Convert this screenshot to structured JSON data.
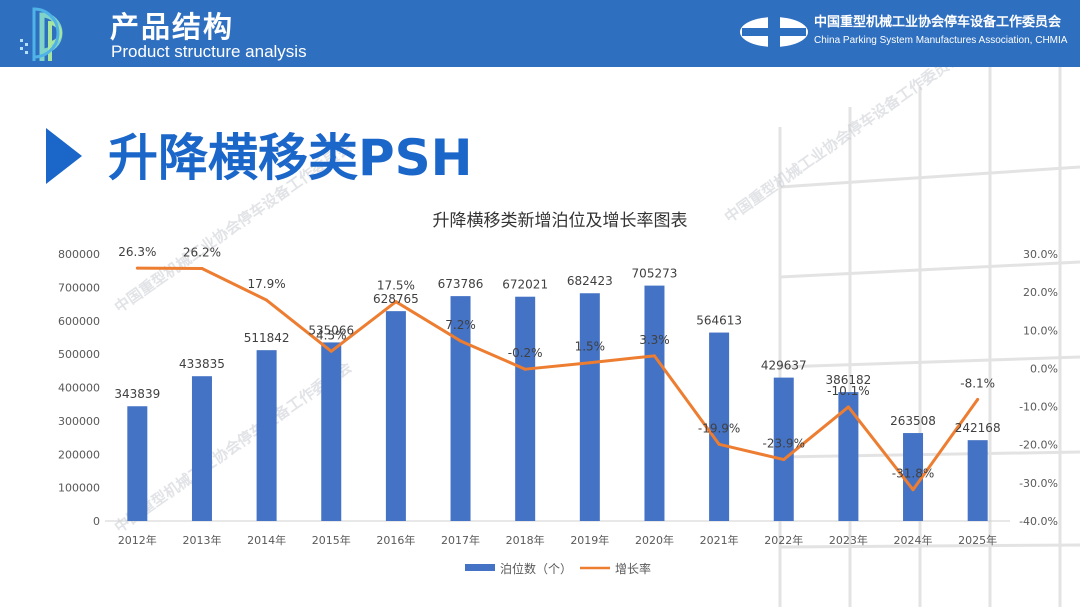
{
  "header": {
    "title_cn": "产品结构",
    "title_en": "Product structure analysis",
    "association_cn": "中国重型机械工业协会停车设备工作委员会",
    "association_en": "China Parking System Manufactures Association, CHMIA"
  },
  "section": {
    "title": "升降横移类PSH"
  },
  "watermark": {
    "cn": "中国重型机械工业协会停车设备工作委员会",
    "en": "China Parking System Manufactures Association, CHMIA"
  },
  "colors": {
    "header_bg": "#2f6fc0",
    "bar": "#4472c4",
    "line": "#ed7d31",
    "title_blue": "#1b66c9"
  },
  "chart_data": {
    "type": "bar",
    "title": "升降横移类新增泊位及增长率图表",
    "categories": [
      "2012年",
      "2013年",
      "2014年",
      "2015年",
      "2016年",
      "2017年",
      "2018年",
      "2019年",
      "2020年",
      "2021年",
      "2022年",
      "2023年",
      "2024年",
      "2025年"
    ],
    "series": [
      {
        "name": "泊位数（个）",
        "type": "bar",
        "axis": "left",
        "values": [
          343839,
          433835,
          511842,
          535066,
          628765,
          673786,
          672021,
          682423,
          705273,
          564613,
          429637,
          386182,
          263508,
          242168
        ],
        "labels": [
          "343839",
          "433835",
          "511842",
          "535066",
          "628765",
          "673786",
          "672021",
          "682423",
          "705273",
          "564613",
          "429637",
          "386182",
          "263508",
          "242168"
        ]
      },
      {
        "name": "增长率",
        "type": "line",
        "axis": "right",
        "values": [
          26.3,
          26.2,
          17.9,
          4.5,
          17.5,
          7.2,
          -0.2,
          1.5,
          3.3,
          -19.9,
          -23.9,
          -10.1,
          -31.8,
          -8.1
        ],
        "labels": [
          "26.3%",
          "26.2%",
          "17.9%",
          "4.5%",
          "17.5%",
          "7.2%",
          "-0.2%",
          "1.5%",
          "3.3%",
          "-19.9%",
          "-23.9%",
          "-10.1%",
          "-31.8%",
          "-8.1%"
        ]
      }
    ],
    "y_left": {
      "ylim": [
        0,
        800000
      ],
      "ticks": [
        "0",
        "100000",
        "200000",
        "300000",
        "400000",
        "500000",
        "600000",
        "700000",
        "800000"
      ]
    },
    "y_right": {
      "ylim": [
        -40,
        30
      ],
      "ticks": [
        "-40.0%",
        "-30.0%",
        "-20.0%",
        "-10.0%",
        "0.0%",
        "10.0%",
        "20.0%",
        "30.0%"
      ]
    },
    "grid": false,
    "legend": "bottom"
  }
}
